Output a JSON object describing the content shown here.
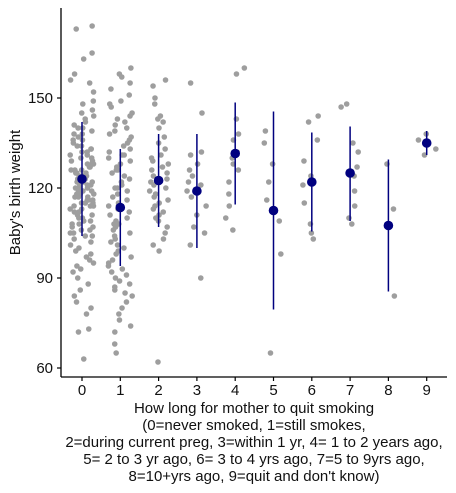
{
  "chart_data": {
    "type": "scatter",
    "title": "",
    "ylabel": "Baby's birth weight",
    "xlabel_lines": [
      "How long for mother to quit smoking",
      "(0=never smoked, 1=still smokes,",
      "2=during current preg, 3=within 1 yr, 4= 1 to 2 years ago,",
      "5= 2 to 3 yr ago, 6= 3 to 4 yrs ago, 7=5 to 9yrs ago,",
      "8=10+yrs ago, 9=quit and don't know)"
    ],
    "categories": [
      "0",
      "1",
      "2",
      "3",
      "4",
      "5",
      "6",
      "7",
      "8",
      "9"
    ],
    "y_ticks": [
      60,
      90,
      120,
      150
    ],
    "ylim": [
      57,
      180
    ],
    "grid": false,
    "colors": {
      "points": "#9e9e9e",
      "summary": "#00007f",
      "axis": "#000000"
    },
    "summary": {
      "x": [
        0,
        1,
        2,
        3,
        4,
        5,
        6,
        7,
        8,
        9
      ],
      "mean": [
        123,
        113.5,
        122.5,
        119,
        131.5,
        112.5,
        122,
        125,
        107.5,
        135
      ],
      "lower": [
        104,
        94,
        107,
        100,
        114.5,
        79.5,
        105.5,
        109,
        85.5,
        131
      ],
      "upper": [
        142,
        133,
        138,
        138,
        148.5,
        145.5,
        138.5,
        140.5,
        129.5,
        139
      ]
    },
    "raw_points": [
      {
        "group": 0,
        "values": [
          174,
          173,
          165,
          163,
          158,
          156,
          155,
          152,
          149,
          148,
          146,
          145,
          144,
          143,
          142,
          141,
          140,
          140,
          139,
          138,
          138,
          137,
          136,
          136,
          135,
          134,
          134,
          133,
          133,
          132,
          132,
          131,
          131,
          130,
          130,
          129,
          129,
          128,
          128,
          128,
          127,
          127,
          126,
          126,
          126,
          125,
          125,
          125,
          124,
          124,
          124,
          123,
          123,
          123,
          122,
          122,
          122,
          121,
          121,
          121,
          120,
          120,
          120,
          119,
          119,
          119,
          118,
          118,
          118,
          117,
          117,
          117,
          116,
          116,
          116,
          115,
          115,
          115,
          114,
          114,
          114,
          113,
          113,
          112,
          112,
          111,
          111,
          110,
          110,
          109,
          109,
          108,
          108,
          107,
          107,
          106,
          106,
          105,
          105,
          104,
          104,
          103,
          102,
          101,
          100,
          99,
          98,
          97,
          96,
          95,
          94,
          93,
          92,
          90,
          88,
          86,
          84,
          82,
          80,
          78,
          73,
          72,
          63
        ]
      },
      {
        "group": 1,
        "values": [
          160,
          158,
          157,
          155,
          153,
          151,
          149,
          148,
          147,
          145,
          144,
          143,
          142,
          141,
          140,
          139,
          138,
          137,
          136,
          135,
          134,
          133,
          132,
          131,
          131,
          130,
          129,
          128,
          127,
          126,
          126,
          125,
          124,
          123,
          122,
          121,
          120,
          120,
          119,
          118,
          117,
          116,
          115,
          114,
          114,
          113,
          112,
          111,
          110,
          109,
          108,
          108,
          107,
          106,
          105,
          104,
          103,
          102,
          101,
          100,
          99,
          98,
          97,
          96,
          95,
          94,
          93,
          92,
          91,
          90,
          89,
          88,
          87,
          86,
          85,
          84,
          82,
          80,
          78,
          76,
          74,
          72,
          68,
          65
        ]
      },
      {
        "group": 2,
        "values": [
          156,
          154,
          150,
          148,
          144,
          143,
          142,
          140,
          137,
          135,
          133,
          131,
          130,
          129,
          128,
          127,
          126,
          125,
          124,
          123,
          122,
          121,
          120,
          119,
          118,
          117,
          116,
          115,
          114,
          113,
          112,
          111,
          110,
          109,
          107,
          105,
          103,
          101,
          99,
          62
        ]
      },
      {
        "group": 3,
        "values": [
          155,
          145,
          132,
          131,
          128,
          126,
          124,
          122,
          121,
          119,
          117,
          114,
          111,
          107,
          105,
          101,
          90
        ]
      },
      {
        "group": 4,
        "values": [
          160,
          158,
          143,
          138,
          136,
          132,
          130,
          128,
          126,
          122,
          118,
          114,
          110,
          106
        ]
      },
      {
        "group": 5,
        "values": [
          139,
          135,
          128,
          122,
          116,
          109,
          98,
          65
        ]
      },
      {
        "group": 6,
        "values": [
          144,
          142,
          136,
          129,
          124,
          121,
          115,
          108,
          105,
          103
        ]
      },
      {
        "group": 7,
        "values": [
          148,
          147,
          135,
          132,
          127,
          124,
          119,
          114,
          110,
          108
        ]
      },
      {
        "group": 8,
        "values": [
          128,
          113,
          84
        ]
      },
      {
        "group": 9,
        "values": [
          138,
          136,
          133,
          131
        ]
      }
    ]
  }
}
